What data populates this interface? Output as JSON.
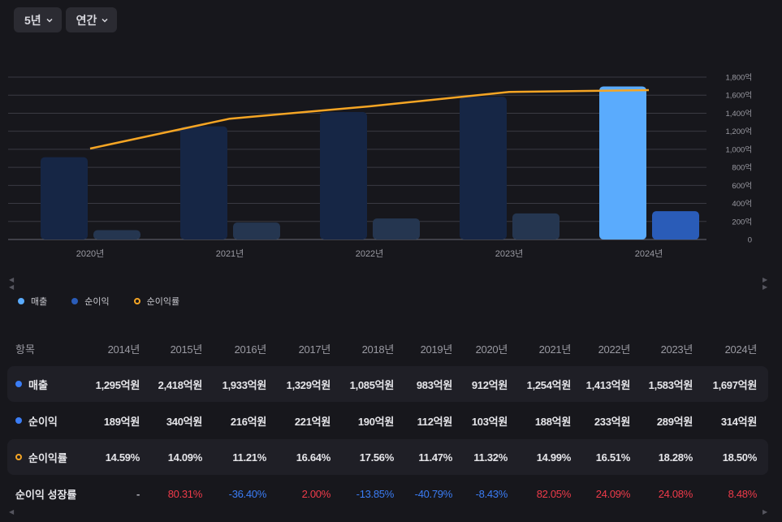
{
  "dropdowns": {
    "period": "5년",
    "frequency": "연간"
  },
  "colors": {
    "revenue_highlight": "#5aabfd",
    "revenue_dim": "#162645",
    "net_income_highlight": "#2a5cb8",
    "net_income_dim": "#253650",
    "margin_line": "#f5a524",
    "positive": "#ef3b4a",
    "negative": "#3b7df5"
  },
  "chart_data": {
    "type": "bar",
    "categories": [
      "2020년",
      "2021년",
      "2022년",
      "2023년",
      "2024년"
    ],
    "series": [
      {
        "name": "매출",
        "values": [
          912,
          1254,
          1413,
          1583,
          1697
        ],
        "unit": "억"
      },
      {
        "name": "순이익",
        "values": [
          103,
          188,
          233,
          289,
          314
        ],
        "unit": "억"
      },
      {
        "name": "순이익률",
        "type": "line",
        "values": [
          11.32,
          14.99,
          16.51,
          18.28,
          18.5
        ],
        "unit": "%"
      }
    ],
    "highlight_category": "2024년",
    "ylim": [
      0,
      1800
    ],
    "yticks": [
      "0",
      "200억",
      "400억",
      "600억",
      "800억",
      "1,000억",
      "1,200억",
      "1,400억",
      "1,600억",
      "1,800억"
    ],
    "ytick_values": [
      0,
      200,
      400,
      600,
      800,
      1000,
      1200,
      1400,
      1600,
      1800
    ],
    "grid": true,
    "legend": "bottom-left"
  },
  "legend": [
    {
      "label": "매출"
    },
    {
      "label": "순이익"
    },
    {
      "label": "순이익률"
    }
  ],
  "table": {
    "header_label": "항목",
    "years": [
      "2014년",
      "2015년",
      "2016년",
      "2017년",
      "2018년",
      "2019년",
      "2020년",
      "2021년",
      "2022년",
      "2023년",
      "2024년"
    ],
    "rows": [
      {
        "label": "매출",
        "values": [
          "1,295억원",
          "2,418억원",
          "1,933억원",
          "1,329억원",
          "1,085억원",
          "983억원",
          "912억원",
          "1,254억원",
          "1,413억원",
          "1,583억원",
          "1,697억원"
        ]
      },
      {
        "label": "순이익",
        "values": [
          "189억원",
          "340억원",
          "216억원",
          "221억원",
          "190억원",
          "112억원",
          "103억원",
          "188억원",
          "233억원",
          "289억원",
          "314억원"
        ]
      },
      {
        "label": "순이익률",
        "values": [
          "14.59%",
          "14.09%",
          "11.21%",
          "16.64%",
          "17.56%",
          "11.47%",
          "11.32%",
          "14.99%",
          "16.51%",
          "18.28%",
          "18.50%"
        ]
      },
      {
        "label": "순이익 성장률",
        "values": [
          "-",
          "80.31%",
          "-36.40%",
          "2.00%",
          "-13.85%",
          "-40.79%",
          "-8.43%",
          "82.05%",
          "24.09%",
          "24.08%",
          "8.48%"
        ]
      }
    ]
  }
}
